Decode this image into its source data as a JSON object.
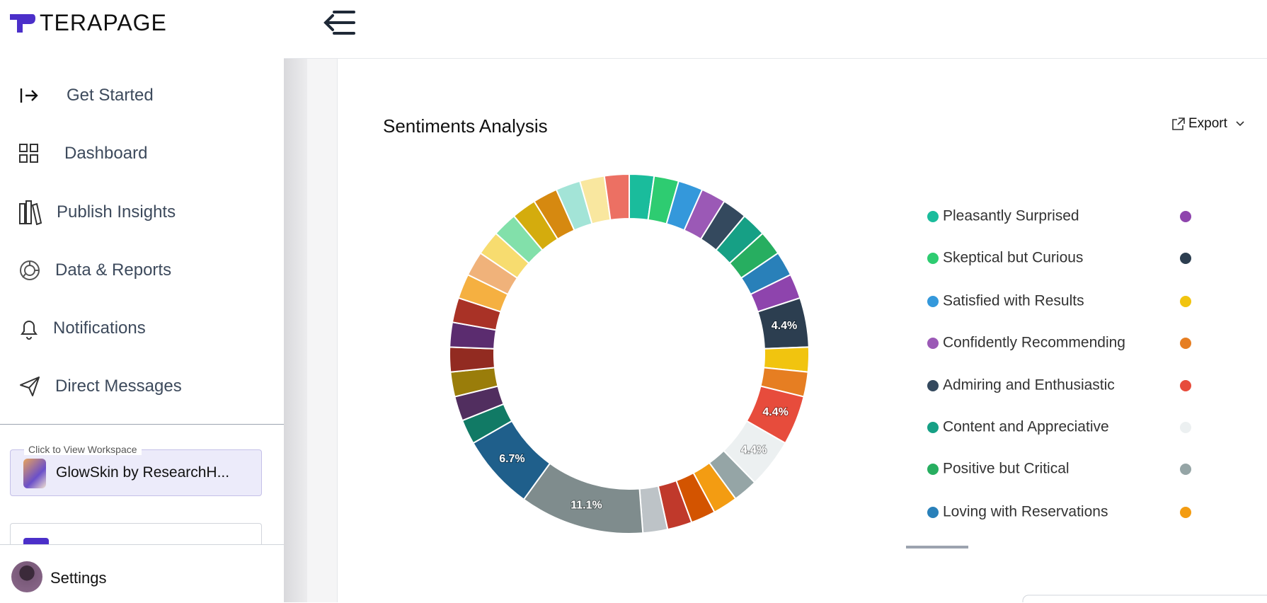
{
  "header": {
    "logo": "TERAPAGE"
  },
  "sidebar": {
    "nav": [
      "Get Started",
      "Dashboard",
      "Publish Insights",
      "Data & Reports",
      "Notifications",
      "Direct Messages"
    ],
    "workspace_hint": "Click to View Workspace",
    "workspace_name": "GlowSkin by ResearchH...",
    "settings": "Settings"
  },
  "export": "Export",
  "chart_data": {
    "type": "pie",
    "title": "Sentiments Analysis",
    "donut": true,
    "categories": [
      "Pleasantly Surprised",
      "Skeptical but Curious",
      "Satisfied with Results",
      "Confidently Recommending",
      "Admiring and Enthusiastic",
      "Content and Appreciative",
      "Positive but Critical",
      "Loving with Reservations",
      null,
      null,
      null,
      null,
      null,
      null,
      null,
      null,
      null,
      null,
      null,
      null,
      null,
      null,
      null,
      null,
      null,
      null,
      null,
      null,
      null,
      null,
      null,
      null,
      null,
      null,
      null,
      null
    ],
    "values": [
      2.2,
      2.2,
      2.2,
      2.2,
      2.2,
      2.2,
      2.2,
      2.2,
      2.2,
      4.4,
      2.2,
      2.2,
      4.4,
      4.4,
      2.2,
      2.2,
      2.2,
      2.2,
      2.2,
      11.1,
      6.7,
      2.2,
      2.2,
      2.2,
      2.2,
      2.2,
      2.2,
      2.2,
      2.2,
      2.2,
      2.2,
      2.2,
      2.2,
      2.2,
      2.2,
      2.2
    ],
    "value_labels": [
      null,
      null,
      null,
      null,
      null,
      null,
      null,
      null,
      null,
      "4.4%",
      null,
      null,
      "4.4%",
      "4.4%",
      null,
      null,
      null,
      null,
      null,
      "11.1%",
      "6.7%",
      null,
      null,
      null,
      null,
      null,
      null,
      null,
      null,
      null,
      null,
      null,
      null,
      null,
      null,
      null
    ],
    "colors": [
      "#1abc9c",
      "#2ecc71",
      "#3498db",
      "#9b59b6",
      "#34495e",
      "#16a085",
      "#27ae60",
      "#2980b9",
      "#8e44ad",
      "#2c3e50",
      "#f1c40f",
      "#e67e22",
      "#e74c3c",
      "#ecf0f1",
      "#95a5a6",
      "#f39c12",
      "#d35400",
      "#c0392b",
      "#bdc3c7",
      "#7f8c8d",
      "#1f5f8b",
      "#117a65",
      "#512e5f",
      "#9a7d0a",
      "#922b21",
      "#5b2c6f",
      "#a93226",
      "#f5b041",
      "#f0b27a",
      "#f7dc6f",
      "#82e0aa",
      "#d4ac0d",
      "#d68910",
      "#a3e4d7",
      "#f9e79f",
      "#ec7063"
    ]
  }
}
